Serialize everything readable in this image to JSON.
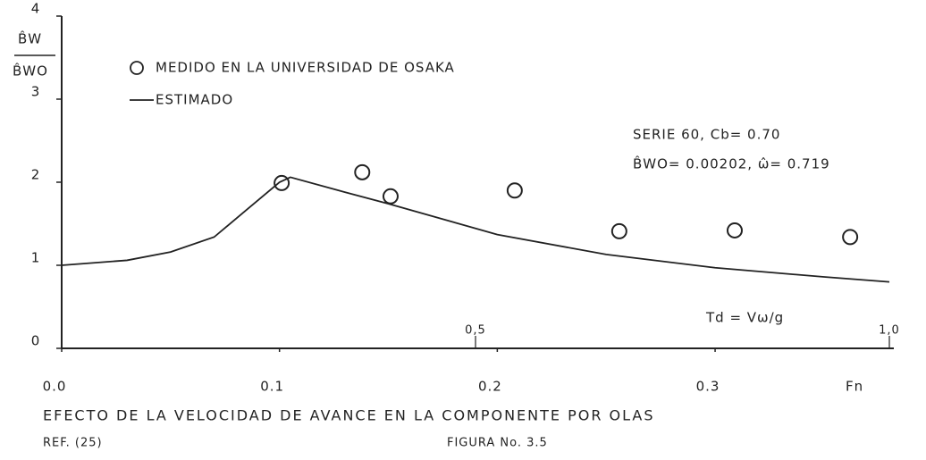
{
  "chart_data": {
    "type": "scatter_line",
    "y_label_numerator": "B̂W",
    "y_label_denominator": "B̂WO",
    "x_label": "Fn",
    "x2_label": "Td = Vω/g",
    "annotations": [
      "SERIE 60,  Cb= 0.70",
      "B̂WO= 0.00202,  ω̂= 0.719"
    ],
    "caption": "EFECTO  DE  LA  VELOCIDAD   DE  AVANCE  EN  LA   COMPONENTE   POR  OLAS",
    "reference": "REF. (25)",
    "figure_label": "FIGURA No. 3.5",
    "xlim": [
      0,
      0.38
    ],
    "xticks": [
      {
        "value": 0,
        "label": "0.0"
      },
      0.1,
      0.2,
      0.3
    ],
    "x2lim": [
      0,
      1.0
    ],
    "x2ticks": [
      {
        "value": 0.5,
        "label": "0,5"
      },
      {
        "value": 1.0,
        "label": "1,0"
      }
    ],
    "ylim": [
      0,
      4
    ],
    "yticks": [
      0,
      1,
      2,
      3,
      4
    ],
    "series": [
      {
        "name": "MEDIDO EN LA UNIVERSIDAD DE OSAKA",
        "kind": "scatter",
        "color": "#222222",
        "x": [
          0.101,
          0.138,
          0.151,
          0.208,
          0.256,
          0.309,
          0.362
        ],
        "values": [
          1.99,
          2.12,
          1.83,
          1.9,
          1.41,
          1.42,
          1.34
        ]
      },
      {
        "name": "ESTIMADO",
        "kind": "line",
        "color": "#222222",
        "x": [
          0,
          0.03,
          0.05,
          0.07,
          0.085,
          0.1,
          0.105,
          0.13,
          0.15,
          0.2,
          0.25,
          0.3,
          0.35,
          0.38
        ],
        "values": [
          1.0,
          1.06,
          1.16,
          1.34,
          1.67,
          2.0,
          2.06,
          1.88,
          1.74,
          1.37,
          1.13,
          0.97,
          0.86,
          0.8
        ]
      }
    ]
  }
}
